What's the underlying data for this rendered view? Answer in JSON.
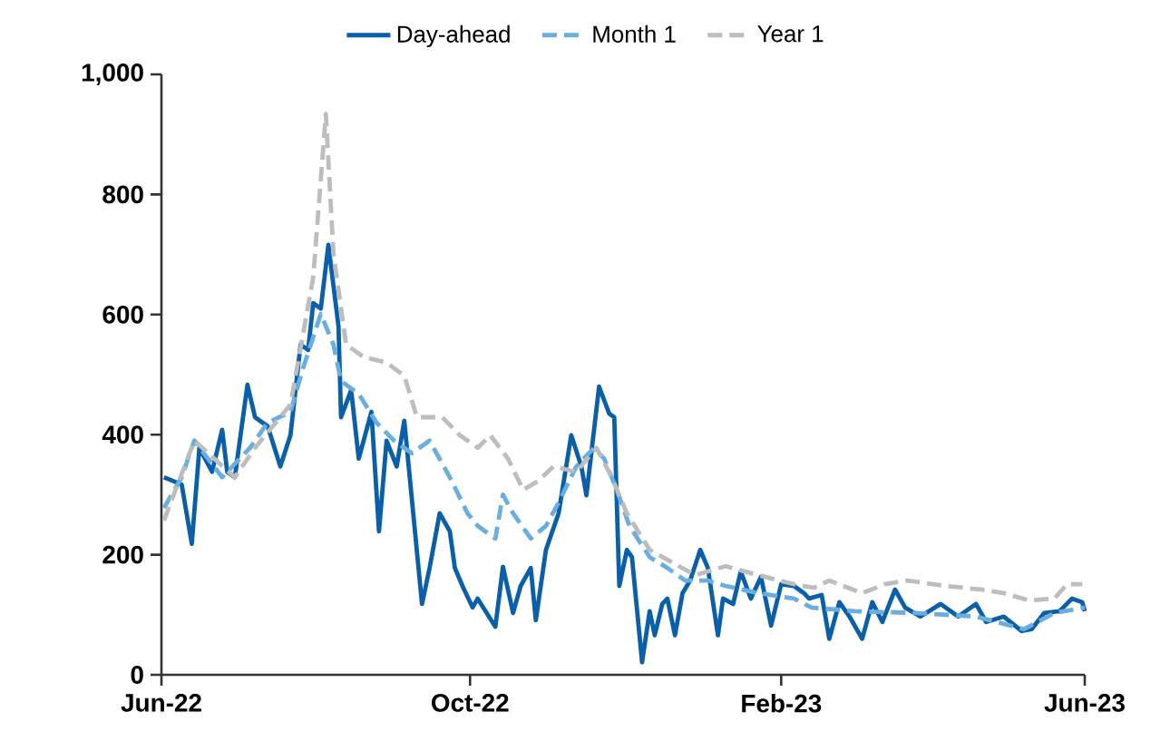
{
  "chart_data": {
    "type": "line",
    "xlim": [
      "2022-06-01",
      "2023-06-01"
    ],
    "xticks": [
      {
        "value": "2022-06-01",
        "label": "Jun-22"
      },
      {
        "value": "2022-10-01",
        "label": "Oct-22"
      },
      {
        "value": "2023-02-01",
        "label": "Feb-23"
      },
      {
        "value": "2023-06-01",
        "label": "Jun-23"
      }
    ],
    "ylim": [
      0,
      1000
    ],
    "yticks": [
      0,
      200,
      400,
      600,
      800,
      {
        "value": 1000,
        "label": "1,000"
      }
    ],
    "legend": "top",
    "series": [
      {
        "name": "Day-ahead",
        "color": "#0a5fab",
        "line_style": "solid",
        "x": [
          "2022-06-02",
          "2022-06-09",
          "2022-06-13",
          "2022-06-16",
          "2022-06-21",
          "2022-06-25",
          "2022-06-27",
          "2022-06-30",
          "2022-07-05",
          "2022-07-08",
          "2022-07-13",
          "2022-07-18",
          "2022-07-22",
          "2022-07-26",
          "2022-07-29",
          "2022-07-31",
          "2022-08-03",
          "2022-08-06",
          "2022-08-10",
          "2022-08-11",
          "2022-08-15",
          "2022-08-18",
          "2022-08-23",
          "2022-08-26",
          "2022-08-29",
          "2022-09-02",
          "2022-09-05",
          "2022-09-12",
          "2022-09-15",
          "2022-09-19",
          "2022-09-23",
          "2022-09-25",
          "2022-09-28",
          "2022-10-02",
          "2022-10-04",
          "2022-10-11",
          "2022-10-14",
          "2022-10-18",
          "2022-10-21",
          "2022-10-25",
          "2022-10-27",
          "2022-10-31",
          "2022-11-05",
          "2022-11-10",
          "2022-11-14",
          "2022-11-16",
          "2022-11-21",
          "2022-11-25",
          "2022-11-27",
          "2022-11-29",
          "2022-12-02",
          "2022-12-04",
          "2022-12-08",
          "2022-12-11",
          "2022-12-13",
          "2022-12-16",
          "2022-12-18",
          "2022-12-21",
          "2022-12-24",
          "2022-12-27",
          "2022-12-31",
          "2023-01-03",
          "2023-01-07",
          "2023-01-09",
          "2023-01-13",
          "2023-01-16",
          "2023-01-20",
          "2023-01-24",
          "2023-01-28",
          "2023-02-01",
          "2023-02-06",
          "2023-02-10",
          "2023-02-12",
          "2023-02-17",
          "2023-02-20",
          "2023-02-24",
          "2023-02-28",
          "2023-03-05",
          "2023-03-09",
          "2023-03-13",
          "2023-03-18",
          "2023-03-22",
          "2023-03-28",
          "2023-04-05",
          "2023-04-12",
          "2023-04-19",
          "2023-04-23",
          "2023-04-30",
          "2023-05-07",
          "2023-05-11",
          "2023-05-16",
          "2023-05-22",
          "2023-05-27",
          "2023-05-31",
          "2023-06-01"
        ],
        "values": [
          329,
          317,
          218,
          378,
          338,
          408,
          338,
          329,
          483,
          429,
          414,
          347,
          399,
          550,
          541,
          619,
          610,
          716,
          580,
          429,
          474,
          360,
          438,
          239,
          390,
          347,
          423,
          118,
          178,
          269,
          239,
          178,
          148,
          112,
          127,
          80,
          180,
          103,
          148,
          178,
          91,
          208,
          269,
          399,
          347,
          299,
          480,
          435,
          429,
          148,
          208,
          196,
          21,
          106,
          66,
          118,
          127,
          66,
          136,
          157,
          208,
          178,
          66,
          127,
          118,
          172,
          127,
          163,
          82,
          151,
          148,
          136,
          127,
          133,
          60,
          121,
          97,
          60,
          121,
          88,
          142,
          112,
          97,
          118,
          97,
          118,
          88,
          97,
          73,
          76,
          103,
          106,
          127,
          121,
          106
        ]
      },
      {
        "name": "Month 1",
        "color": "#6aaee0",
        "line_style": "dashed",
        "x": [
          "2022-06-02",
          "2022-06-09",
          "2022-06-14",
          "2022-06-25",
          "2022-07-06",
          "2022-07-13",
          "2022-07-22",
          "2022-07-27",
          "2022-08-03",
          "2022-08-08",
          "2022-08-11",
          "2022-08-18",
          "2022-08-25",
          "2022-09-01",
          "2022-09-08",
          "2022-09-15",
          "2022-09-23",
          "2022-09-30",
          "2022-10-04",
          "2022-10-11",
          "2022-10-14",
          "2022-10-18",
          "2022-10-25",
          "2022-10-31",
          "2022-11-05",
          "2022-11-12",
          "2022-11-19",
          "2022-11-23",
          "2022-11-28",
          "2022-12-03",
          "2022-12-11",
          "2022-12-18",
          "2022-12-25",
          "2023-01-03",
          "2023-01-10",
          "2023-01-23",
          "2023-02-06",
          "2023-02-13",
          "2023-03-02",
          "2023-03-26",
          "2023-04-19",
          "2023-05-08",
          "2023-05-20",
          "2023-06-01"
        ],
        "values": [
          278,
          329,
          390,
          329,
          378,
          420,
          438,
          511,
          601,
          550,
          489,
          468,
          420,
          390,
          369,
          390,
          329,
          269,
          248,
          227,
          300,
          269,
          227,
          248,
          287,
          347,
          378,
          360,
          308,
          248,
          196,
          178,
          157,
          157,
          148,
          136,
          127,
          112,
          106,
          103,
          97,
          76,
          103,
          112
        ]
      },
      {
        "name": "Year 1",
        "color": "#bdbdbd",
        "line_style": "dashed",
        "x": [
          "2022-06-02",
          "2022-06-14",
          "2022-06-30",
          "2022-07-08",
          "2022-07-22",
          "2022-07-31",
          "2022-08-05",
          "2022-08-08",
          "2022-08-13",
          "2022-08-20",
          "2022-08-29",
          "2022-09-05",
          "2022-09-10",
          "2022-09-20",
          "2022-09-27",
          "2022-10-04",
          "2022-10-09",
          "2022-10-16",
          "2022-10-22",
          "2022-10-28",
          "2022-11-03",
          "2022-11-12",
          "2022-11-20",
          "2022-11-26",
          "2022-12-02",
          "2022-12-11",
          "2022-12-20",
          "2022-12-29",
          "2023-01-10",
          "2023-01-23",
          "2023-02-06",
          "2023-02-14",
          "2023-02-20",
          "2023-03-05",
          "2023-03-14",
          "2023-03-23",
          "2023-04-07",
          "2023-04-21",
          "2023-04-30",
          "2023-05-10",
          "2023-05-20",
          "2023-05-25",
          "2023-05-31"
        ],
        "values": [
          257,
          390,
          329,
          378,
          450,
          662,
          934,
          701,
          550,
          529,
          520,
          498,
          429,
          429,
          399,
          378,
          399,
          360,
          308,
          323,
          347,
          338,
          378,
          329,
          269,
          208,
          187,
          166,
          181,
          166,
          151,
          145,
          157,
          136,
          151,
          157,
          148,
          142,
          136,
          124,
          127,
          151,
          151
        ]
      }
    ]
  }
}
